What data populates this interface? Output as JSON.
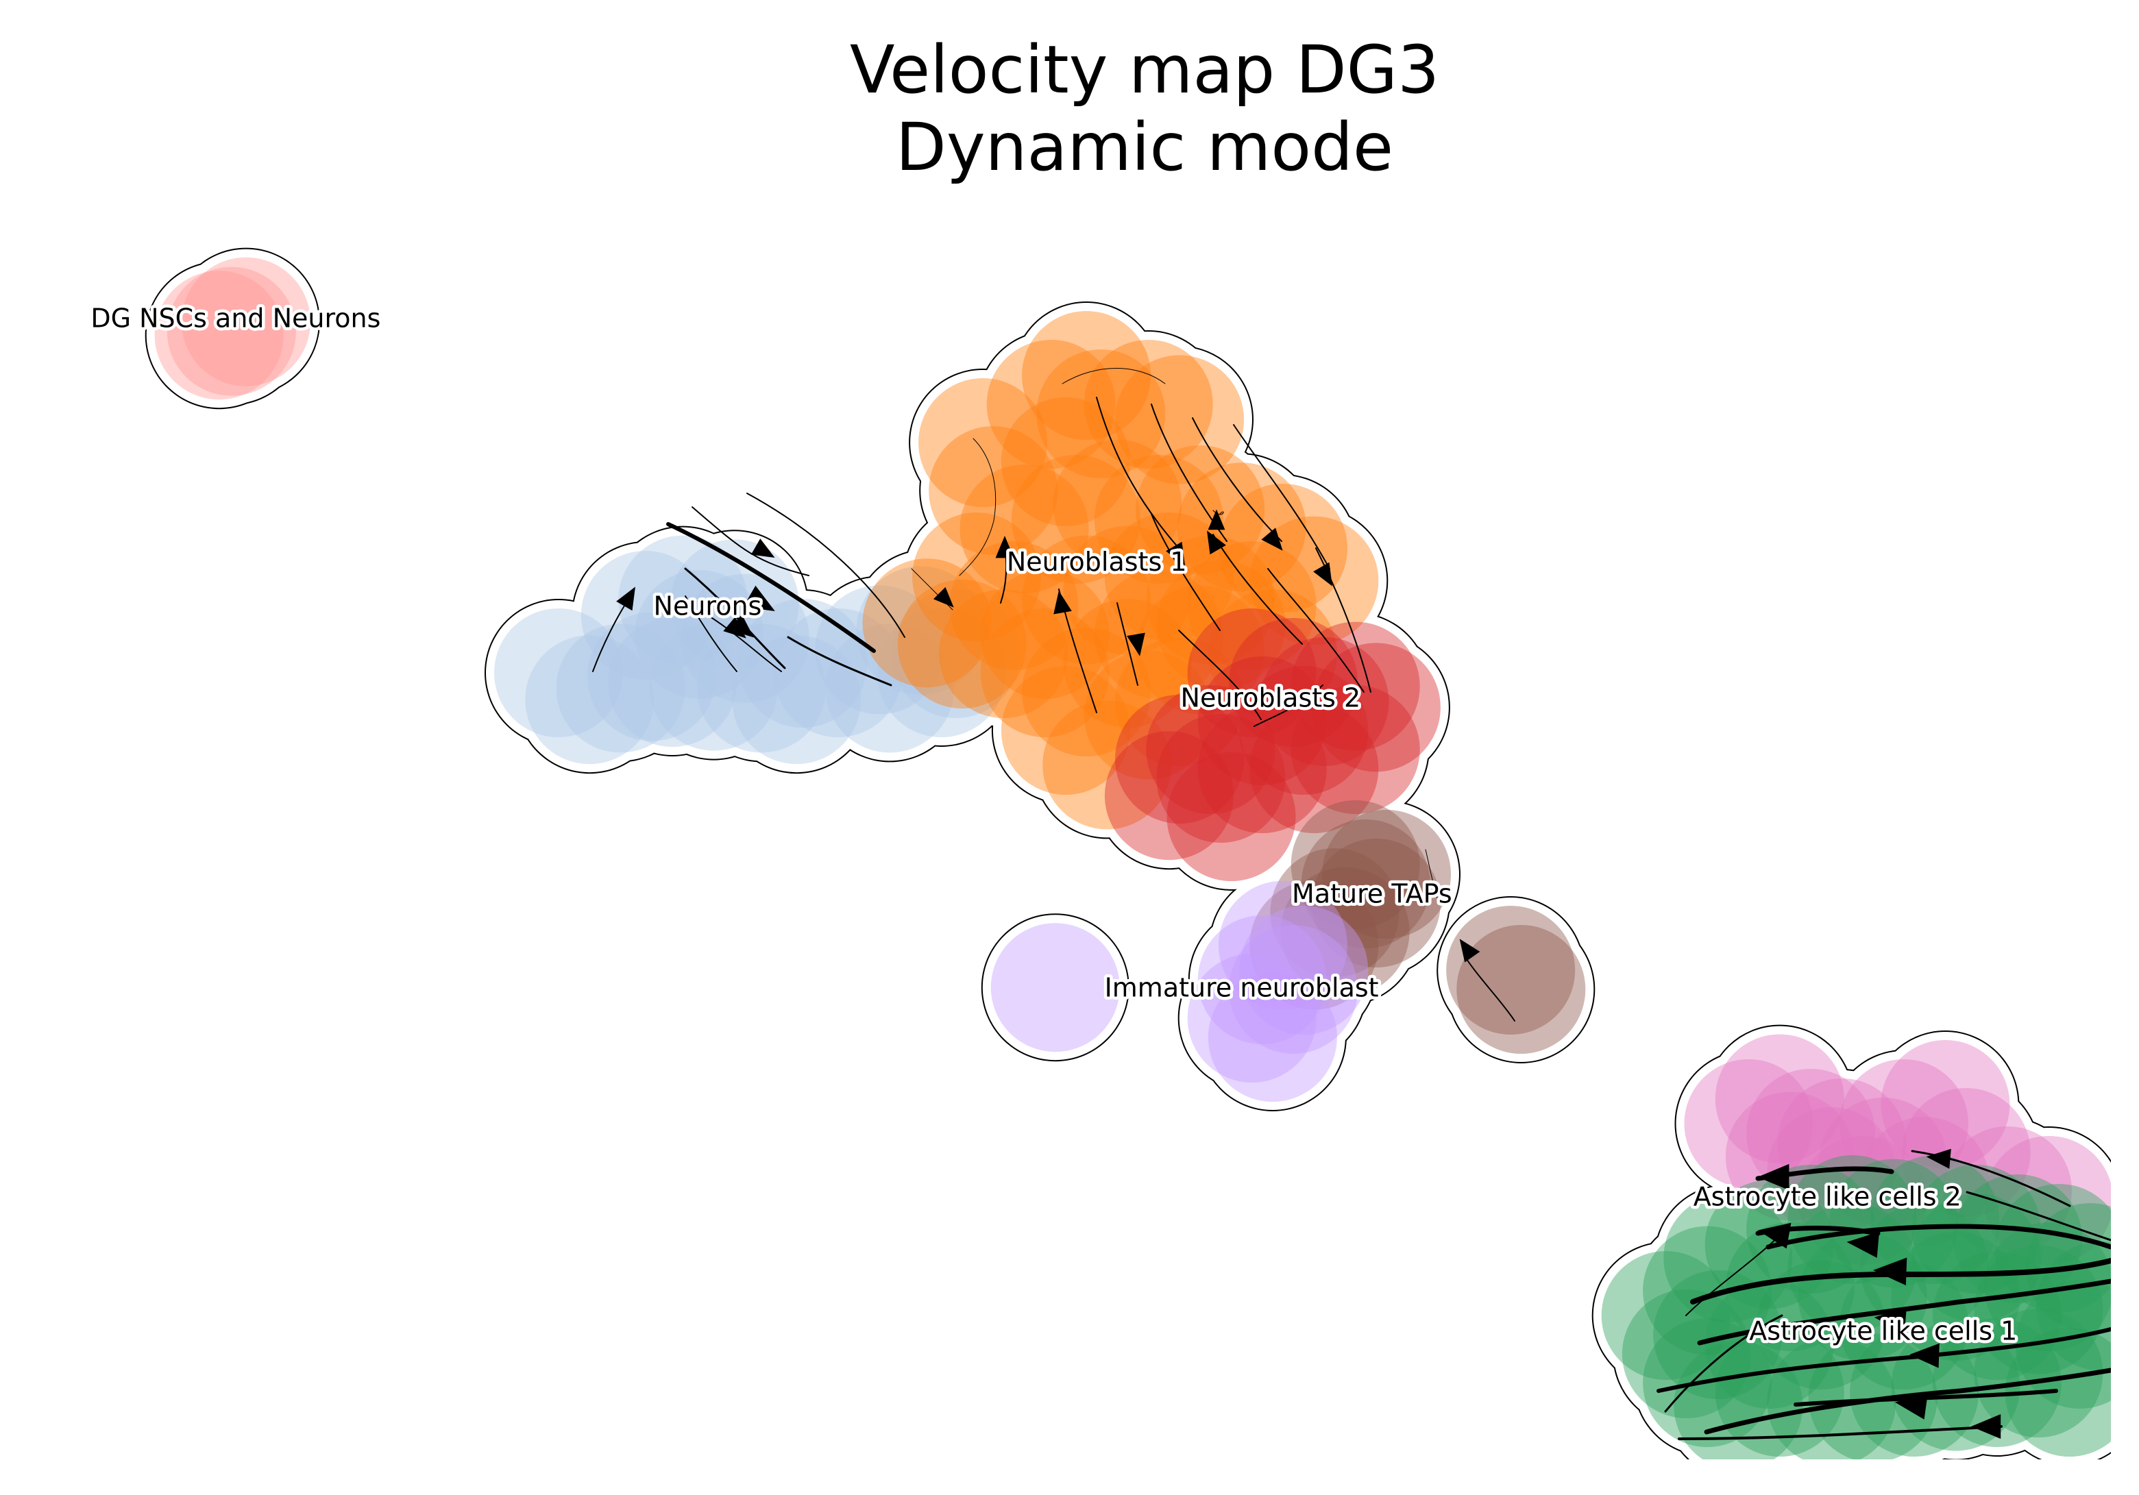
{
  "chart_data": {
    "type": "scatter",
    "title": "Velocity map DG3",
    "subtitle": "Dynamic mode",
    "xlabel": "",
    "ylabel": "",
    "axes_visible": false,
    "grid": false,
    "legend": "on data",
    "xlim": [
      0,
      100
    ],
    "ylim": [
      0,
      70
    ],
    "series": [
      {
        "name": "DG NSCs and Neurons",
        "color": "#ff9896",
        "label_pos": [
          9.4,
          59.4
        ],
        "points": [
          [
            9.2,
            58.8
          ],
          [
            8.6,
            58.6
          ],
          [
            9.9,
            59.3
          ]
        ]
      },
      {
        "name": "Neurons",
        "color": "#aec7e8",
        "label_pos": [
          32.2,
          44.4
        ],
        "points": [
          [
            31.0,
            44.8
          ],
          [
            33.5,
            44.6
          ],
          [
            29.2,
            44.0
          ],
          [
            34.0,
            42.8
          ],
          [
            31.8,
            43.0
          ],
          [
            28.0,
            40.2
          ],
          [
            29.5,
            40.8
          ],
          [
            32.5,
            40.3
          ],
          [
            34.8,
            40.2
          ],
          [
            36.8,
            41.5
          ],
          [
            38.5,
            41.0
          ],
          [
            40.5,
            42.2
          ],
          [
            42.5,
            43.2
          ],
          [
            44.2,
            42.0
          ],
          [
            41.0,
            40.2
          ],
          [
            43.5,
            41.0
          ],
          [
            26.5,
            39.6
          ],
          [
            30.5,
            40.5
          ],
          [
            36.5,
            39.6
          ],
          [
            25.0,
            41.0
          ]
        ]
      },
      {
        "name": "Neuroblasts 1",
        "color": "#ff7f0e",
        "label_pos": [
          51.0,
          46.7
        ],
        "points": [
          [
            45.5,
            53.0
          ],
          [
            46.0,
            50.5
          ],
          [
            48.8,
            55.0
          ],
          [
            49.5,
            52.0
          ],
          [
            50.5,
            56.5
          ],
          [
            51.2,
            54.5
          ],
          [
            53.5,
            55.0
          ],
          [
            55.0,
            54.2
          ],
          [
            47.5,
            48.5
          ],
          [
            50.0,
            49.0
          ],
          [
            52.0,
            49.8
          ],
          [
            54.0,
            49.0
          ],
          [
            56.0,
            49.5
          ],
          [
            58.0,
            48.6
          ],
          [
            60.0,
            47.5
          ],
          [
            61.5,
            45.8
          ],
          [
            45.2,
            46.0
          ],
          [
            47.0,
            44.5
          ],
          [
            48.5,
            43.0
          ],
          [
            50.5,
            44.8
          ],
          [
            52.5,
            45.3
          ],
          [
            54.5,
            46.0
          ],
          [
            56.5,
            44.8
          ],
          [
            58.5,
            44.5
          ],
          [
            44.5,
            42.5
          ],
          [
            46.5,
            42.0
          ],
          [
            48.5,
            41.0
          ],
          [
            50.5,
            40.0
          ],
          [
            52.5,
            41.5
          ],
          [
            54.0,
            43.0
          ],
          [
            56.0,
            42.2
          ],
          [
            49.5,
            38.0
          ],
          [
            51.5,
            36.2
          ],
          [
            53.5,
            38.8
          ],
          [
            55.0,
            39.5
          ],
          [
            57.0,
            43.5
          ],
          [
            59.5,
            42.0
          ],
          [
            42.8,
            43.6
          ]
        ]
      },
      {
        "name": "Neuroblasts 2",
        "color": "#d62728",
        "label_pos": [
          59.4,
          39.6
        ],
        "points": [
          [
            58.5,
            41.0
          ],
          [
            60.5,
            40.5
          ],
          [
            62.0,
            39.5
          ],
          [
            63.5,
            40.3
          ],
          [
            64.5,
            39.2
          ],
          [
            61.0,
            38.0
          ],
          [
            59.0,
            38.5
          ],
          [
            56.5,
            37.0
          ],
          [
            55.0,
            36.5
          ],
          [
            57.0,
            35.5
          ],
          [
            59.0,
            36.0
          ],
          [
            61.5,
            36.0
          ],
          [
            63.5,
            37.0
          ],
          [
            54.5,
            34.6
          ],
          [
            57.5,
            33.5
          ]
        ]
      },
      {
        "name": "Mature TAPs",
        "color": "#8c564b",
        "label_pos": [
          64.3,
          29.4
        ],
        "points": [
          [
            64.0,
            30.0
          ],
          [
            65.0,
            30.5
          ],
          [
            63.5,
            31.0
          ],
          [
            64.5,
            29.0
          ],
          [
            62.5,
            28.5
          ],
          [
            63.0,
            27.5
          ],
          [
            61.5,
            26.8
          ],
          [
            71.0,
            25.5
          ],
          [
            71.5,
            24.5
          ]
        ]
      },
      {
        "name": "Immature neuroblast",
        "color": "#c49cff",
        "label_pos": [
          58.0,
          24.5
        ],
        "points": [
          [
            49.0,
            24.6
          ],
          [
            60.0,
            26.8
          ],
          [
            59.0,
            25.0
          ],
          [
            60.5,
            24.5
          ],
          [
            58.5,
            23.0
          ],
          [
            59.5,
            22.0
          ],
          [
            61.0,
            25.5
          ]
        ]
      },
      {
        "name": "Astrocyte like cells 2",
        "color": "#e377c2",
        "label_pos": [
          86.3,
          13.6
        ],
        "points": [
          [
            82.5,
            17.5
          ],
          [
            84.0,
            18.8
          ],
          [
            85.5,
            17.0
          ],
          [
            87.0,
            16.5
          ],
          [
            86.5,
            15.0
          ],
          [
            89.0,
            15.5
          ],
          [
            91.0,
            14.5
          ],
          [
            92.0,
            18.5
          ],
          [
            93.0,
            16.0
          ],
          [
            95.0,
            14.0
          ],
          [
            97.0,
            13.5
          ],
          [
            88.0,
            13.5
          ],
          [
            84.5,
            15.8
          ],
          [
            90.0,
            17.5
          ]
        ]
      },
      {
        "name": "Astrocyte like cells 1",
        "color": "#2ca05a",
        "label_pos": [
          89.0,
          6.6
        ],
        "points": [
          [
            78.5,
            7.5
          ],
          [
            79.5,
            5.5
          ],
          [
            80.5,
            8.8
          ],
          [
            81.5,
            10.5
          ],
          [
            83.5,
            11.2
          ],
          [
            85.5,
            12.0
          ],
          [
            87.5,
            12.5
          ],
          [
            89.5,
            12.3
          ],
          [
            91.5,
            12.5
          ],
          [
            93.5,
            12.0
          ],
          [
            95.5,
            11.5
          ],
          [
            97.5,
            11.0
          ],
          [
            99.0,
            10.0
          ],
          [
            99.5,
            8.0
          ],
          [
            80.5,
            4.0
          ],
          [
            82.0,
            2.8
          ],
          [
            84.0,
            3.5
          ],
          [
            86.5,
            3.0
          ],
          [
            88.5,
            3.2
          ],
          [
            90.5,
            3.5
          ],
          [
            92.5,
            3.8
          ],
          [
            94.5,
            4.0
          ],
          [
            96.5,
            4.5
          ],
          [
            98.0,
            3.5
          ],
          [
            83.5,
            6.0
          ],
          [
            86.0,
            7.0
          ],
          [
            88.0,
            8.5
          ],
          [
            90.0,
            7.0
          ],
          [
            92.5,
            8.5
          ],
          [
            94.5,
            7.5
          ],
          [
            96.5,
            7.8
          ],
          [
            98.5,
            6.0
          ],
          [
            84.5,
            9.0
          ],
          [
            87.5,
            10.0
          ],
          [
            91.0,
            10.0
          ],
          [
            93.5,
            10.5
          ],
          [
            97.0,
            9.0
          ],
          [
            81.0,
            6.5
          ]
        ]
      }
    ]
  }
}
